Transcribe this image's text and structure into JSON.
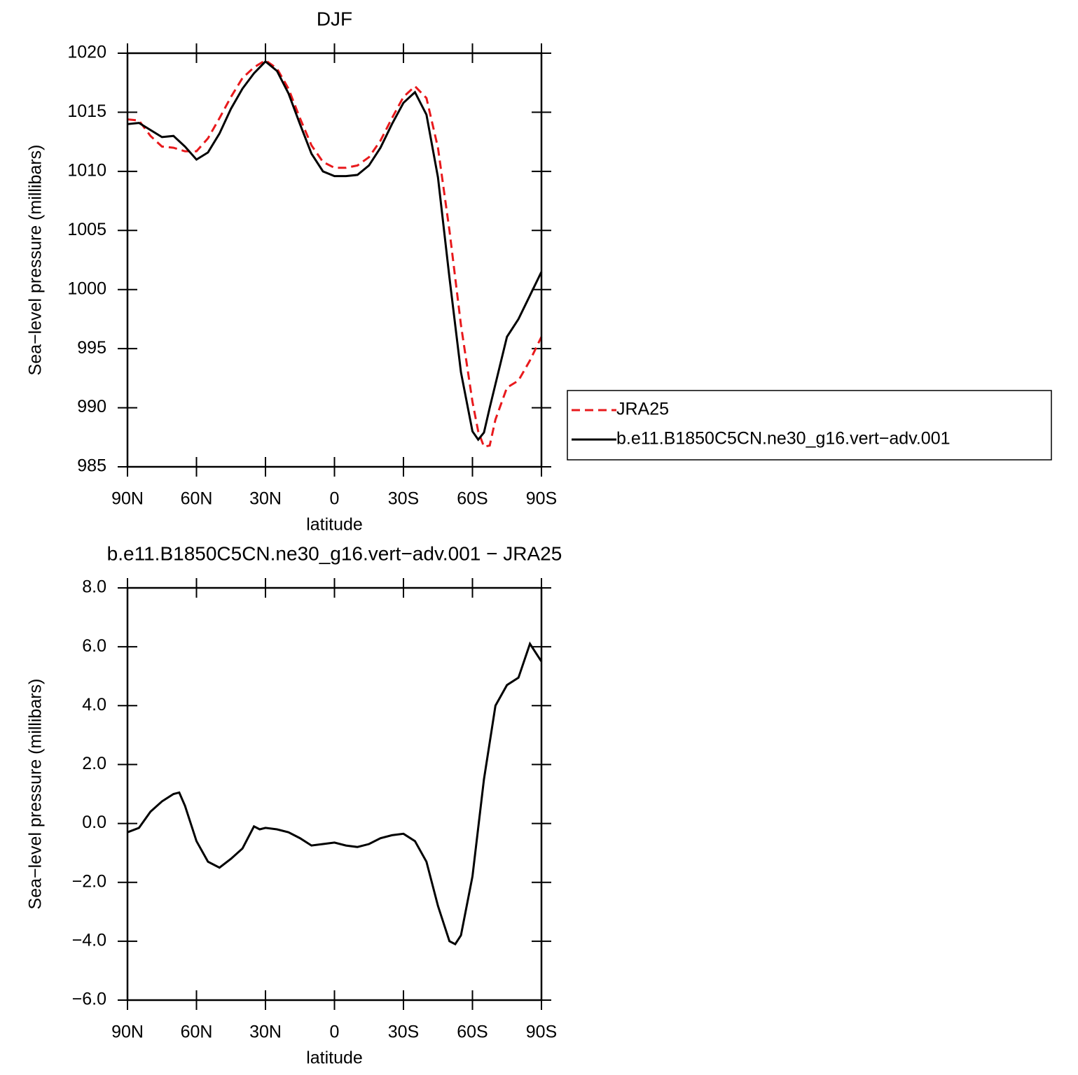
{
  "chart_data": [
    {
      "type": "line",
      "title": "DJF",
      "ylabel": "Sea−level pressure (millibars)",
      "xlabel": "latitude",
      "x": [
        90,
        85,
        80,
        75,
        70,
        65,
        60,
        55,
        50,
        45,
        40,
        35,
        30,
        25,
        20,
        15,
        10,
        5,
        0,
        -5,
        -10,
        -15,
        -20,
        -25,
        -30,
        -35,
        -40,
        -45,
        -50,
        -55,
        -60,
        -62.5,
        -65,
        -67.5,
        -70,
        -75,
        -80,
        -85,
        -90
      ],
      "series": [
        {
          "name": "JRA25",
          "color": "#e8191c",
          "dash": "dashed",
          "values": [
            1014.4,
            1014.3,
            1013.0,
            1012.1,
            1012.0,
            1011.7,
            1011.7,
            1012.8,
            1014.5,
            1016.3,
            1017.9,
            1018.8,
            1019.4,
            1018.7,
            1017.0,
            1014.5,
            1012.2,
            1010.8,
            1010.3,
            1010.3,
            1010.5,
            1011.2,
            1012.6,
            1014.5,
            1016.3,
            1017.2,
            1016.2,
            1012.0,
            1005.0,
            997.0,
            990.5,
            988.0,
            986.7,
            986.8,
            989.0,
            991.7,
            992.3,
            994.0,
            996.0
          ]
        },
        {
          "name": "b.e11.B1850C5CN.ne30_g16.vert−adv.001",
          "color": "#000000",
          "dash": "solid",
          "values": [
            1014.0,
            1014.1,
            1013.5,
            1012.9,
            1013.0,
            1012.1,
            1011.0,
            1011.6,
            1013.2,
            1015.3,
            1017.0,
            1018.3,
            1019.3,
            1018.5,
            1016.6,
            1014.0,
            1011.5,
            1010.0,
            1009.6,
            1009.6,
            1009.7,
            1010.5,
            1012.0,
            1014.0,
            1015.8,
            1016.7,
            1014.8,
            1009.5,
            1001.0,
            993.0,
            988.0,
            987.3,
            987.9,
            990.0,
            992.0,
            996.0,
            997.5,
            999.5,
            1001.5
          ]
        }
      ],
      "xlim": [
        90,
        -90
      ],
      "xticks": [
        {
          "value": 90,
          "label": "90N"
        },
        {
          "value": 60,
          "label": "60N"
        },
        {
          "value": 30,
          "label": "30N"
        },
        0,
        {
          "value": -30,
          "label": "30S"
        },
        {
          "value": -60,
          "label": "60S"
        },
        {
          "value": -90,
          "label": "90S"
        }
      ],
      "ylim": [
        985,
        1020
      ],
      "yticks": [
        985,
        990,
        995,
        1000,
        1005,
        1010,
        1015,
        1020
      ],
      "legend": "right"
    },
    {
      "type": "line",
      "title": "b.e11.B1850C5CN.ne30_g16.vert−adv.001  −  JRA25",
      "ylabel": "Sea−level pressure (millibars)",
      "xlabel": "latitude",
      "x": [
        90,
        85,
        80,
        75,
        70,
        67.5,
        65,
        60,
        55,
        50,
        45,
        40,
        35,
        32.5,
        30,
        25,
        20,
        15,
        10,
        5,
        0,
        -5,
        -10,
        -15,
        -20,
        -25,
        -30,
        -35,
        -40,
        -45,
        -50,
        -52.5,
        -55,
        -60,
        -65,
        -70,
        -75,
        -80,
        -85,
        -90
      ],
      "series": [
        {
          "color": "#000000",
          "dash": "solid",
          "values": [
            -0.3,
            -0.15,
            0.4,
            0.75,
            1.0,
            1.05,
            0.6,
            -0.6,
            -1.3,
            -1.5,
            -1.2,
            -0.85,
            -0.1,
            -0.2,
            -0.15,
            -0.2,
            -0.3,
            -0.5,
            -0.75,
            -0.7,
            -0.65,
            -0.75,
            -0.8,
            -0.7,
            -0.5,
            -0.4,
            -0.35,
            -0.6,
            -1.3,
            -2.8,
            -4.0,
            -4.1,
            -3.8,
            -1.8,
            1.5,
            4.0,
            4.7,
            4.95,
            6.1,
            5.5
          ]
        }
      ],
      "xlim": [
        90,
        -90
      ],
      "xticks": [
        {
          "value": 90,
          "label": "90N"
        },
        {
          "value": 60,
          "label": "60N"
        },
        {
          "value": 30,
          "label": "30N"
        },
        0,
        {
          "value": -30,
          "label": "30S"
        },
        {
          "value": -60,
          "label": "60S"
        },
        {
          "value": -90,
          "label": "90S"
        }
      ],
      "ylim": [
        -6,
        8
      ],
      "yticks": [
        {
          "value": -6,
          "label": "−6.0"
        },
        {
          "value": -4,
          "label": "−4.0"
        },
        {
          "value": -2,
          "label": "−2.0"
        },
        {
          "value": 0,
          "label": "0.0"
        },
        {
          "value": 2,
          "label": "2.0"
        },
        {
          "value": 4,
          "label": "4.0"
        },
        {
          "value": 6,
          "label": "6.0"
        },
        {
          "value": 8,
          "label": "8.0"
        }
      ]
    }
  ]
}
